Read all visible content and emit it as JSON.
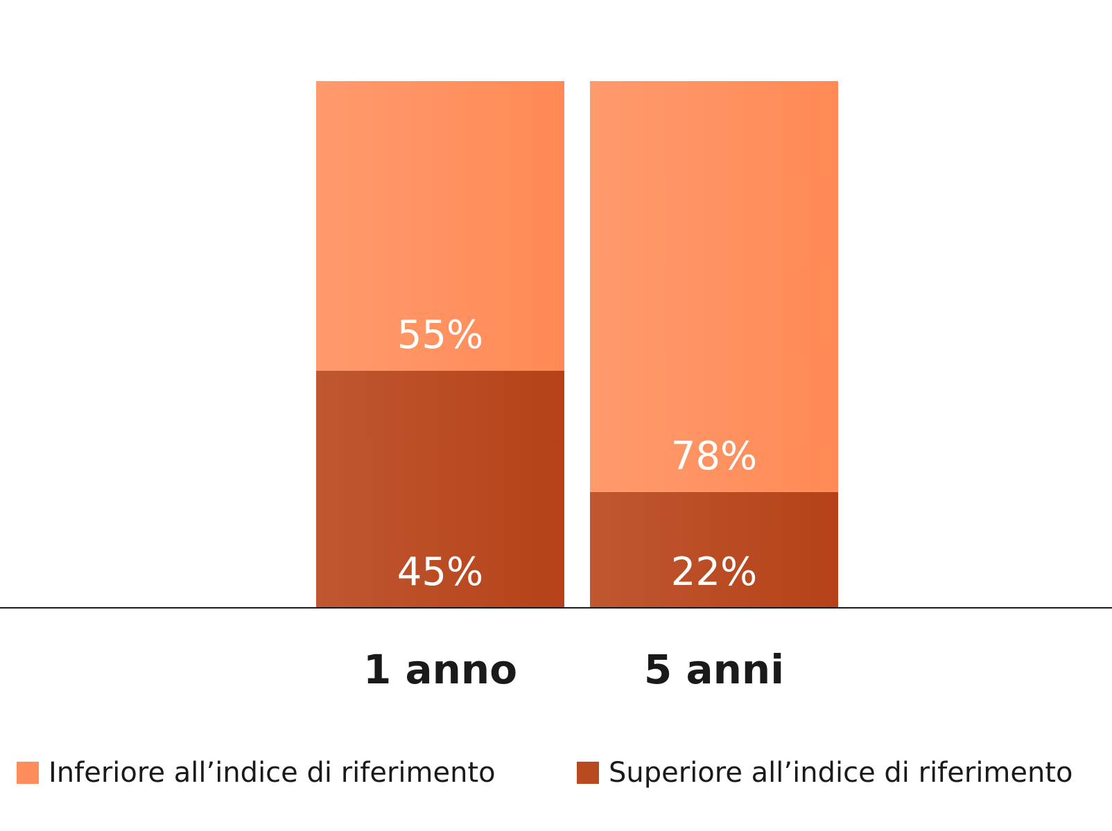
{
  "chart_data": {
    "type": "bar",
    "stacked": true,
    "categories": [
      "1 anno",
      "5 anni"
    ],
    "series": [
      {
        "name": "Superiore all’indice di riferimento",
        "values": [
          45,
          22
        ],
        "labels": [
          "45%",
          "22%"
        ],
        "color": "#b84a20"
      },
      {
        "name": "Inferiore all’indice di riferimento",
        "values": [
          55,
          78
        ],
        "labels": [
          "55%",
          "78%"
        ],
        "color": "#ff8c5a"
      }
    ],
    "ylim": [
      0,
      100
    ],
    "grid": false,
    "legend_position": "bottom"
  }
}
